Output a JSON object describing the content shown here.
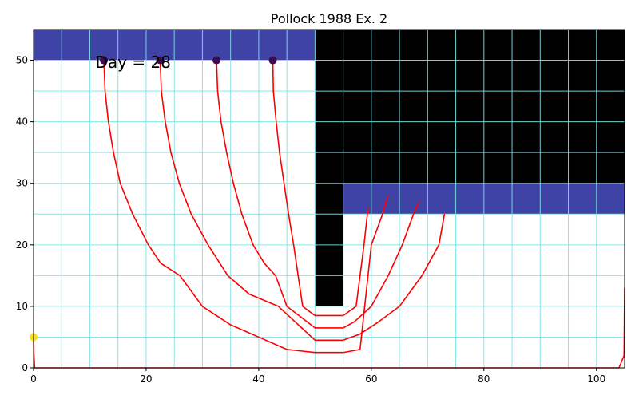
{
  "chart_data": {
    "type": "line",
    "title": "Pollock 1988 Ex. 2",
    "xlabel": "",
    "ylabel": "",
    "xlim": [
      0,
      105
    ],
    "ylim": [
      0,
      55
    ],
    "xticks": [
      0,
      20,
      40,
      60,
      80,
      100
    ],
    "yticks": [
      0,
      10,
      20,
      30,
      40,
      50
    ],
    "grid": {
      "x_spacing": 5,
      "y_spacing": 5,
      "color": "#7fe3e6"
    },
    "annotation": "Day = 28",
    "regions": [
      {
        "kind": "constant-head",
        "color": "#3f43a6",
        "x": [
          0,
          50
        ],
        "y": [
          50,
          55
        ]
      },
      {
        "kind": "inactive",
        "color": "#000000",
        "x": [
          50,
          105
        ],
        "y": [
          30,
          55
        ]
      },
      {
        "kind": "inactive",
        "color": "#000000",
        "x": [
          50,
          55
        ],
        "y": [
          10,
          30
        ]
      },
      {
        "kind": "constant-head",
        "color": "#3f43a6",
        "x": [
          55,
          105
        ],
        "y": [
          25,
          30
        ]
      }
    ],
    "pathline_color": "#ff0000",
    "start_point_color": "#3d0a53",
    "well_marker_color": "#f5e21b",
    "series": [
      {
        "x": [
          12.5,
          12.7,
          13.3,
          14.2,
          15.4,
          17.6,
          20.4,
          22.6,
          26.0,
          30.0,
          35.0,
          40.0,
          45.0,
          50.0,
          55.0,
          58.0,
          60.0,
          62.0,
          62.6,
          63.0
        ],
        "y": [
          50,
          45,
          40,
          35,
          30,
          25,
          20,
          17,
          15,
          10,
          7,
          5,
          3,
          2.5,
          2.5,
          3,
          20,
          25,
          27,
          28
        ]
      },
      {
        "x": [
          22.5,
          22.7,
          23.4,
          24.4,
          25.9,
          28.0,
          31.0,
          34.5,
          38.3,
          43.5,
          50.0,
          55.0,
          58.0,
          61.0,
          65.0,
          69.0,
          72.0,
          73.0
        ],
        "y": [
          50,
          45,
          40,
          35,
          30,
          25,
          20,
          15,
          12,
          10,
          4.5,
          4.5,
          5.5,
          7.3,
          10,
          15,
          20,
          25
        ]
      },
      {
        "x": [
          32.5,
          32.7,
          33.3,
          34.3,
          35.5,
          37.0,
          39.0,
          41.0,
          43.0,
          45.0,
          50.0,
          55.0,
          57.0,
          60.0,
          63.0,
          65.5,
          67.5,
          68.5
        ],
        "y": [
          50,
          45,
          40,
          35,
          30,
          25,
          20,
          17,
          15,
          10,
          6.5,
          6.5,
          7.5,
          10,
          15,
          20,
          25,
          27
        ]
      },
      {
        "x": [
          42.5,
          42.6,
          43.1,
          43.7,
          44.5,
          45.3,
          46.2,
          47.0,
          47.8,
          50.0,
          55.0,
          57.3,
          58.0,
          58.7,
          59.3,
          59.6
        ],
        "y": [
          50,
          45,
          40,
          35,
          30,
          25,
          20,
          15,
          10,
          8.5,
          8.5,
          10,
          15,
          20,
          25,
          26
        ]
      },
      {
        "x": [
          0,
          0.05,
          0.2,
          104.0,
          104.9,
          105.0
        ],
        "y": [
          5,
          2.5,
          0,
          0,
          2,
          13
        ]
      }
    ],
    "start_points": {
      "x": [
        12.5,
        22.5,
        32.5,
        42.5
      ],
      "y": [
        50,
        50,
        50,
        50
      ]
    },
    "well_marker": {
      "x": 0,
      "y": 5
    }
  }
}
